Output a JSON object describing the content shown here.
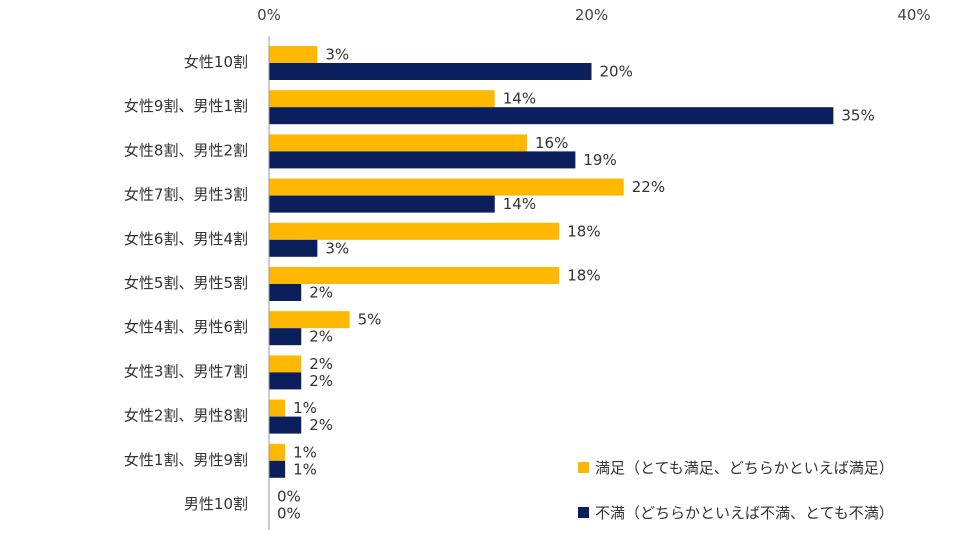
{
  "chart_data": {
    "type": "bar",
    "orientation": "horizontal",
    "title": "",
    "xlabel": "",
    "ylabel": "",
    "xlim": [
      0,
      40
    ],
    "x_ticks": [
      0,
      20,
      40
    ],
    "tick_format": "%",
    "grid": false,
    "legend_position": "bottom-right",
    "categories": [
      "女性10割",
      "女性9割、男性1割",
      "女性8割、男性2割",
      "女性7割、男性3割",
      "女性6割、男性4割",
      "女性5割、男性5割",
      "女性4割、男性6割",
      "女性3割、男性7割",
      "女性2割、男性8割",
      "女性1割、男性9割",
      "男性10割"
    ],
    "series": [
      {
        "name": "満足（とても満足、どちらかといえば満足）",
        "color": "#FFB800",
        "values": [
          3,
          14,
          16,
          22,
          18,
          18,
          5,
          2,
          1,
          1,
          0
        ]
      },
      {
        "name": "不満（どちらかといえば不満、とても不満）",
        "color": "#0B1F5C",
        "values": [
          20,
          35,
          19,
          14,
          3,
          2,
          2,
          2,
          2,
          1,
          0
        ]
      }
    ]
  }
}
